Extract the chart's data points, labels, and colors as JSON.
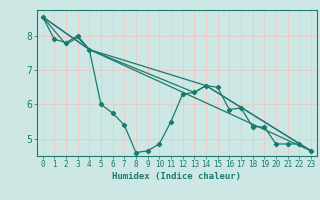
{
  "xlabel": "Humidex (Indice chaleur)",
  "background_color": "#cde8e4",
  "grid_color": "#f0f0f0",
  "line_color": "#1a7a6e",
  "xlim": [
    -0.5,
    23.5
  ],
  "ylim": [
    4.5,
    8.75
  ],
  "xtick_values": [
    0,
    1,
    2,
    3,
    4,
    5,
    6,
    7,
    8,
    9,
    10,
    11,
    12,
    13,
    14,
    15,
    16,
    17,
    18,
    19,
    20,
    21,
    22,
    23
  ],
  "xtick_labels": [
    "0",
    "1",
    "2",
    "3",
    "4",
    "5",
    "6",
    "7",
    "8",
    "9",
    "10",
    "11",
    "12",
    "13",
    "14",
    "15",
    "16",
    "17",
    "18",
    "19",
    "20",
    "21",
    "22",
    "23"
  ],
  "ytick_values": [
    5,
    6,
    7,
    8
  ],
  "ytick_labels": [
    "5",
    "6",
    "7",
    "8"
  ],
  "series": [
    {
      "x": [
        0,
        1,
        2,
        3,
        4,
        5,
        6,
        7,
        8,
        9,
        10,
        11,
        12,
        13,
        14,
        15,
        16,
        17,
        18,
        19,
        20,
        21,
        22,
        23
      ],
      "y": [
        8.55,
        7.9,
        7.8,
        8.0,
        7.6,
        6.0,
        5.75,
        5.4,
        4.6,
        4.65,
        4.85,
        5.5,
        6.3,
        6.35,
        6.55,
        6.5,
        5.85,
        5.9,
        5.35,
        5.35,
        4.85,
        4.85,
        4.85,
        4.65
      ],
      "marker": true
    },
    {
      "x": [
        0,
        2,
        3,
        4,
        23
      ],
      "y": [
        8.55,
        7.75,
        7.95,
        7.6,
        4.65
      ],
      "marker": false
    },
    {
      "x": [
        0,
        4,
        13,
        14,
        23
      ],
      "y": [
        8.55,
        7.6,
        6.35,
        6.55,
        4.65
      ],
      "marker": false
    },
    {
      "x": [
        0,
        4,
        14,
        23
      ],
      "y": [
        8.55,
        7.6,
        6.55,
        4.65
      ],
      "marker": false
    }
  ]
}
